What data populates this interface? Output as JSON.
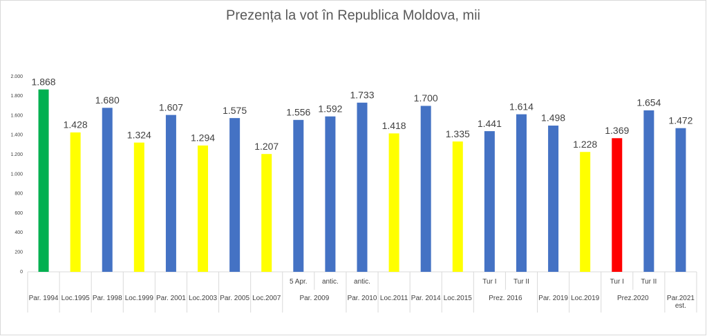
{
  "chart_data": {
    "type": "bar",
    "title": "Prezența la vot în Republica Moldova, mii",
    "ylim": [
      0,
      2000
    ],
    "yticks": [
      0,
      200,
      400,
      600,
      800,
      {
        "value": 1000,
        "label": "1.000"
      },
      {
        "value": 1200,
        "label": "1.200"
      },
      {
        "value": 1400,
        "label": "1.400"
      },
      {
        "value": 1600,
        "label": "1.600"
      },
      {
        "value": 1800,
        "label": "1.800"
      },
      {
        "value": 2000,
        "label": "2.000"
      }
    ],
    "grid": false,
    "groups": [
      {
        "label": "Par. 1994",
        "items": [
          {
            "value": 1868,
            "value_label": "1.868",
            "color": "#00b050"
          }
        ]
      },
      {
        "label": "Loc.1995",
        "items": [
          {
            "value": 1428,
            "value_label": "1.428",
            "color": "#ffff00"
          }
        ]
      },
      {
        "label": "Par. 1998",
        "items": [
          {
            "value": 1680,
            "value_label": "1.680",
            "color": "#4472c4"
          }
        ]
      },
      {
        "label": "Loc.1999",
        "items": [
          {
            "value": 1324,
            "value_label": "1.324",
            "color": "#ffff00"
          }
        ]
      },
      {
        "label": "Par. 2001",
        "items": [
          {
            "value": 1607,
            "value_label": "1.607",
            "color": "#4472c4"
          }
        ]
      },
      {
        "label": "Loc.2003",
        "items": [
          {
            "value": 1294,
            "value_label": "1.294",
            "color": "#ffff00"
          }
        ]
      },
      {
        "label": "Par. 2005",
        "items": [
          {
            "value": 1575,
            "value_label": "1.575",
            "color": "#4472c4"
          }
        ]
      },
      {
        "label": "Loc.2007",
        "items": [
          {
            "value": 1207,
            "value_label": "1.207",
            "color": "#ffff00"
          }
        ]
      },
      {
        "label": "Par. 2009",
        "items": [
          {
            "label": "5 Apr.",
            "value": 1556,
            "value_label": "1.556",
            "color": "#4472c4"
          },
          {
            "label": "antic.",
            "value": 1592,
            "value_label": "1.592",
            "color": "#4472c4"
          }
        ]
      },
      {
        "label": "Par. 2010",
        "items": [
          {
            "label": "antic.",
            "value": 1733,
            "value_label": "1.733",
            "color": "#4472c4"
          }
        ]
      },
      {
        "label": "Loc.2011",
        "items": [
          {
            "value": 1418,
            "value_label": "1.418",
            "color": "#ffff00"
          }
        ]
      },
      {
        "label": "Par. 2014",
        "items": [
          {
            "value": 1700,
            "value_label": "1.700",
            "color": "#4472c4"
          }
        ]
      },
      {
        "label": "Loc.2015",
        "items": [
          {
            "value": 1335,
            "value_label": "1.335",
            "color": "#ffff00"
          }
        ]
      },
      {
        "label": "Prez. 2016",
        "items": [
          {
            "label": "Tur I",
            "value": 1441,
            "value_label": "1.441",
            "color": "#4472c4"
          },
          {
            "label": "Tur II",
            "value": 1614,
            "value_label": "1.614",
            "color": "#4472c4"
          }
        ]
      },
      {
        "label": "Par. 2019",
        "items": [
          {
            "value": 1498,
            "value_label": "1.498",
            "color": "#4472c4"
          }
        ]
      },
      {
        "label": "Loc.2019",
        "items": [
          {
            "value": 1228,
            "value_label": "1.228",
            "color": "#ffff00"
          }
        ]
      },
      {
        "label": "Prez.2020",
        "items": [
          {
            "label": "Tur I",
            "value": 1369,
            "value_label": "1.369",
            "color": "#ff0000"
          },
          {
            "label": "Tur II",
            "value": 1654,
            "value_label": "1.654",
            "color": "#4472c4"
          }
        ]
      },
      {
        "label": "Par.2021 est.",
        "items": [
          {
            "value": 1472,
            "value_label": "1.472",
            "color": "#4472c4"
          }
        ]
      }
    ]
  }
}
